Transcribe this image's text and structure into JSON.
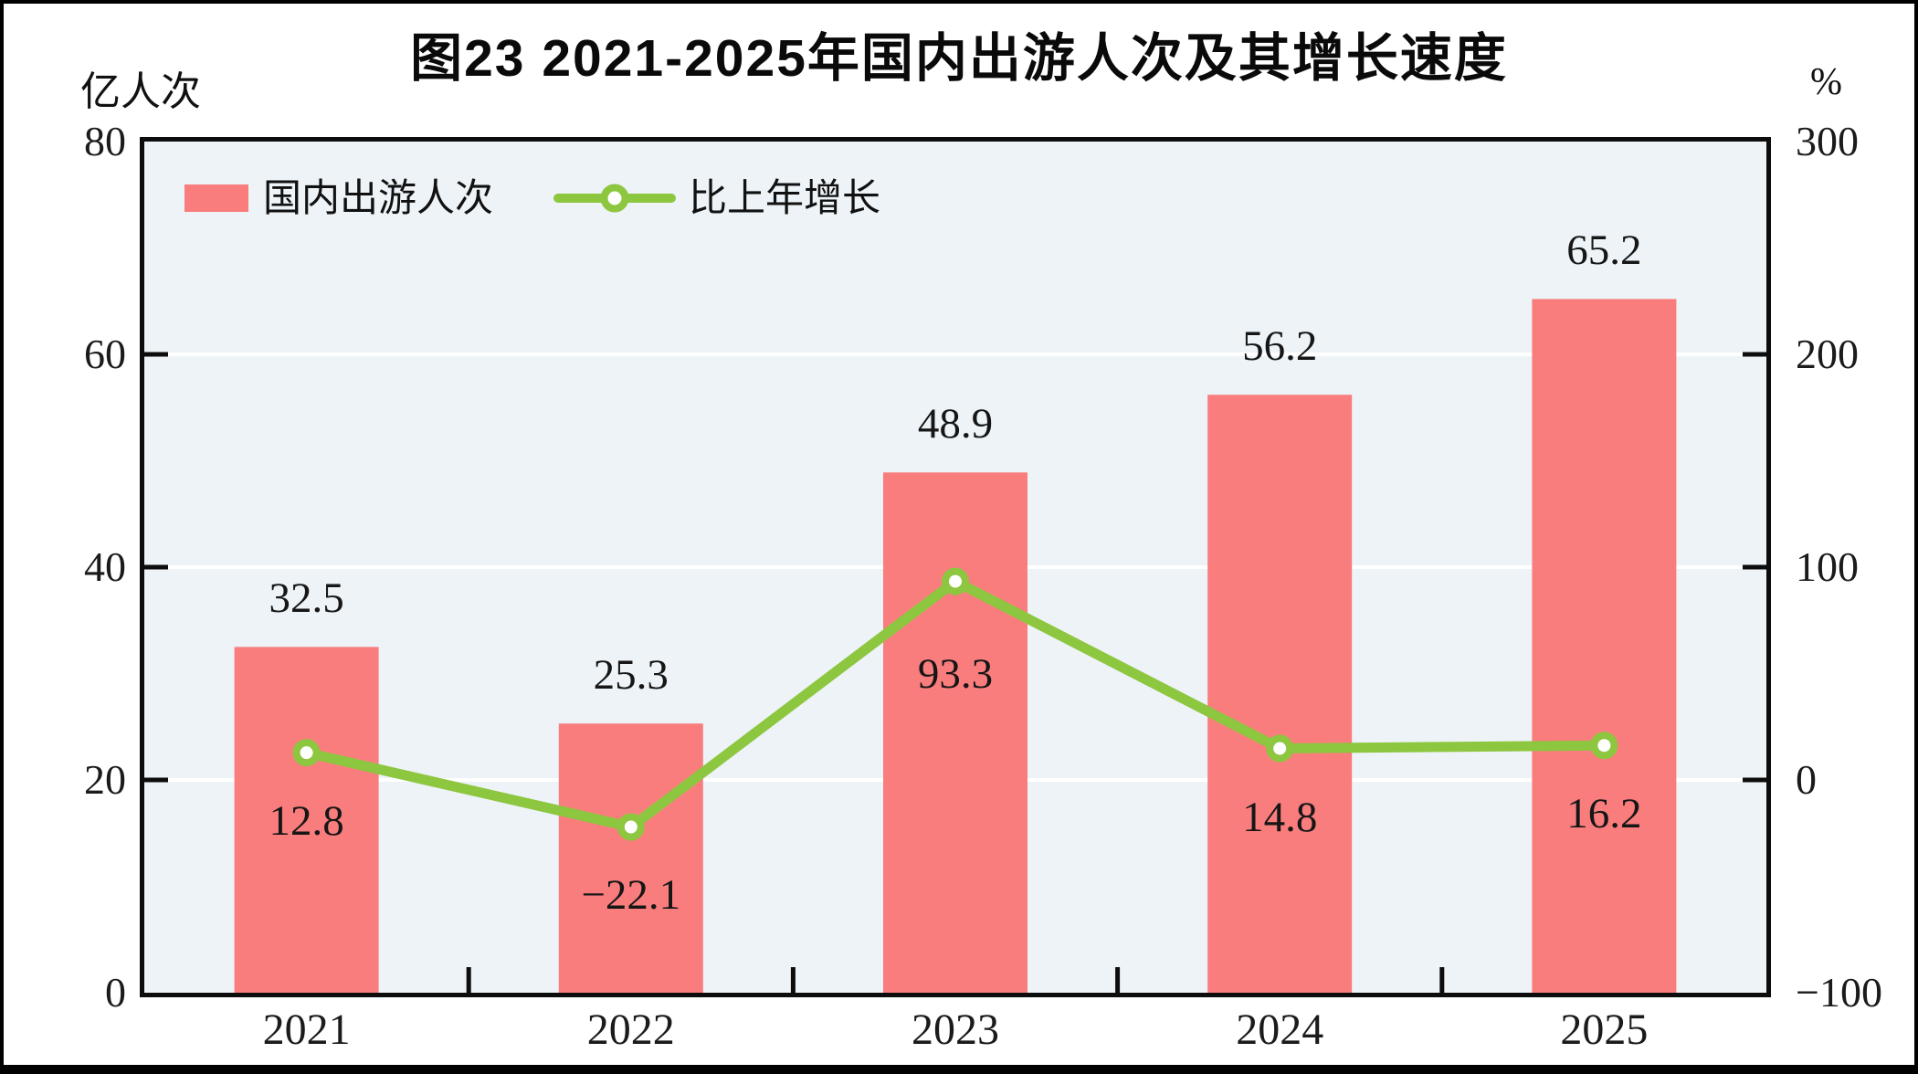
{
  "figure": {
    "title": "图23  2021-2025年国内出游人次及其增长速度",
    "left_axis_unit": "亿人次",
    "right_axis_unit": "%"
  },
  "legend": {
    "bar_label": "国内出游人次",
    "line_label": "比上年增长"
  },
  "chart_data": {
    "type": "bar",
    "subtype": "bar+line combo, dual axis",
    "title": "图23  2021-2025年国内出游人次及其增长速度",
    "categories": [
      "2021",
      "2022",
      "2023",
      "2024",
      "2025"
    ],
    "series": [
      {
        "name": "国内出游人次",
        "type": "bar",
        "axis": "left",
        "unit": "亿人次",
        "values": [
          32.5,
          25.3,
          48.9,
          56.2,
          65.2
        ],
        "labels": [
          "32.5",
          "25.3",
          "48.9",
          "56.2",
          "65.2"
        ],
        "color": "#FA7D7D"
      },
      {
        "name": "比上年增长",
        "type": "line",
        "axis": "right",
        "unit": "%",
        "values": [
          12.8,
          -22.1,
          93.3,
          14.8,
          16.2
        ],
        "labels": [
          "12.8",
          "−22.1",
          "93.3",
          "14.8",
          "16.2"
        ],
        "color": "#8DC63F",
        "marker": "circle-white-fill-green-ring"
      }
    ],
    "left_axis": {
      "label": "亿人次",
      "min": 0,
      "max": 80,
      "ticks": [
        "80",
        "60",
        "40",
        "20",
        "0"
      ],
      "tick_values": [
        80,
        60,
        40,
        20,
        0
      ]
    },
    "right_axis": {
      "label": "%",
      "min": -100,
      "max": 300,
      "ticks": [
        "300",
        "200",
        "100",
        "0",
        "−100"
      ],
      "tick_values": [
        300,
        200,
        100,
        0,
        -100
      ]
    },
    "gridlines": {
      "at_left_axis_values": [
        20,
        40,
        60
      ],
      "color": "#FFFFFF"
    },
    "plot_background": "#EDF3F7",
    "legend_position": "top-left-inside"
  }
}
